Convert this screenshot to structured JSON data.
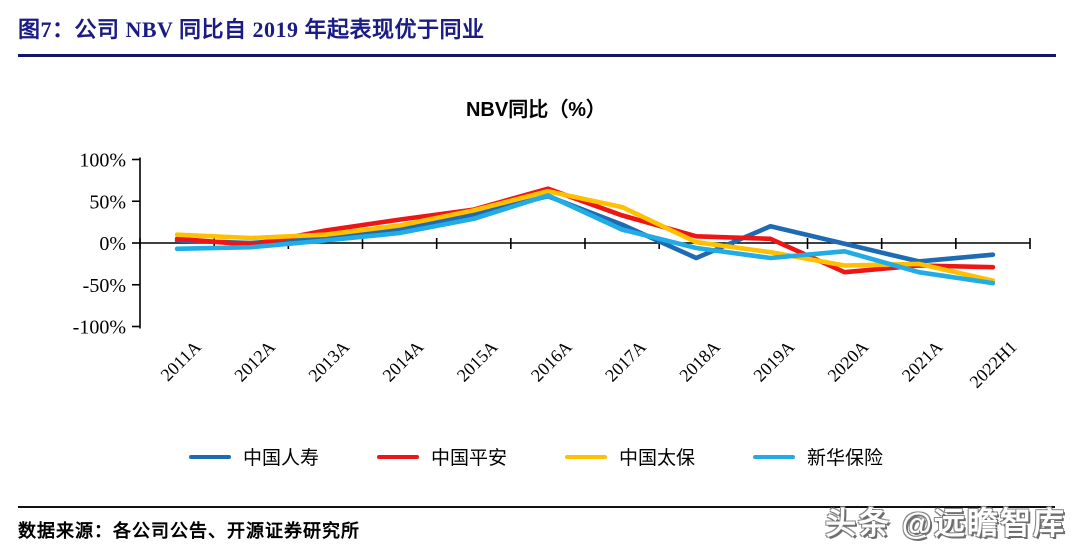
{
  "header": {
    "title": "图7：公司 NBV 同比自 2019 年起表现优于同业"
  },
  "chart_data": {
    "type": "line",
    "title": "NBV同比（%）",
    "categories": [
      "2011A",
      "2012A",
      "2013A",
      "2014A",
      "2015A",
      "2016A",
      "2017A",
      "2018A",
      "2019A",
      "2020A",
      "2021A",
      "2022H1"
    ],
    "series": [
      {
        "name": "中国人寿",
        "color": "#1e6bb4",
        "values": [
          3,
          0,
          7,
          16,
          34,
          56,
          22,
          -18,
          20,
          -1,
          -22,
          -14
        ]
      },
      {
        "name": "中国平安",
        "color": "#ed1515",
        "values": [
          5,
          -2,
          15,
          28,
          40,
          65,
          33,
          8,
          5,
          -35,
          -27,
          -29
        ]
      },
      {
        "name": "中国太保",
        "color": "#ffc000",
        "values": [
          10,
          6,
          10,
          21,
          39,
          62,
          43,
          1,
          -11,
          -27,
          -25,
          -45
        ]
      },
      {
        "name": "新华保险",
        "color": "#22ace5",
        "values": [
          -7,
          -5,
          3,
          12,
          29,
          57,
          16,
          -6,
          -18,
          -10,
          -35,
          -48
        ]
      }
    ],
    "y_ticks": [
      "100%",
      "50%",
      "0%",
      "-50%",
      "-100%"
    ],
    "y_tick_values": [
      100,
      50,
      0,
      -50,
      -100
    ],
    "ylim": [
      -100,
      100
    ],
    "unit": "%",
    "grid": false,
    "legend_position": "bottom",
    "x_label_rotation": 45
  },
  "footer": {
    "source": "数据来源：各公司公告、开源证券研究所",
    "watermark": "头条 @远瞻智库"
  }
}
